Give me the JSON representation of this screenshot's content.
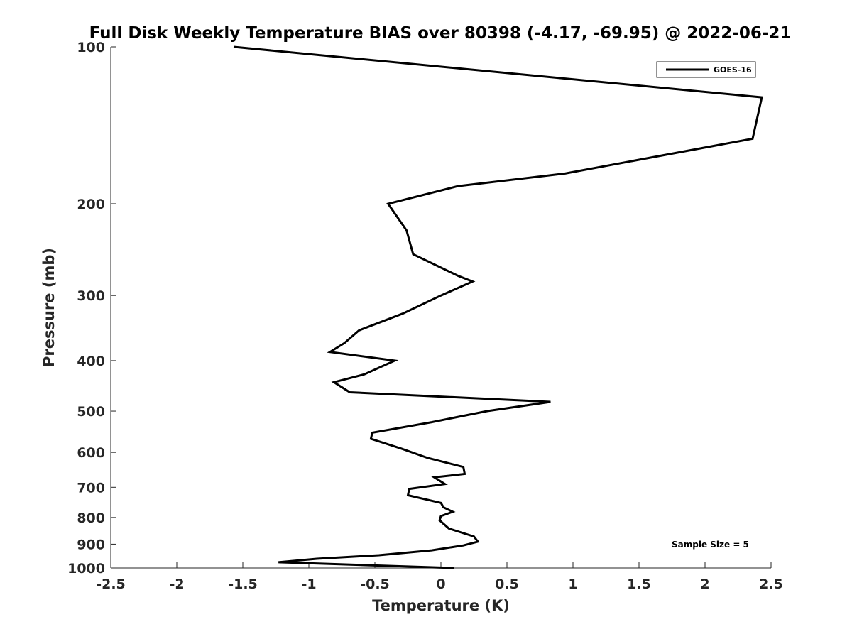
{
  "chart_data": {
    "type": "line",
    "title": "Full Disk Weekly Temperature BIAS over 80398 (-4.17, -69.95) @ 2022-06-21",
    "xlabel": "Temperature (K)",
    "ylabel": "Pressure (mb)",
    "xlim": [
      -2.5,
      2.5
    ],
    "ylim": [
      100,
      1000
    ],
    "yscale": "log",
    "yreversed": true,
    "x_ticks": [
      -2.5,
      -2,
      -1.5,
      -1,
      -0.5,
      0,
      0.5,
      1,
      1.5,
      2,
      2.5
    ],
    "x_tick_labels": [
      "-2.5",
      "-2",
      "-1.5",
      "-1",
      "-0.5",
      "0",
      "0.5",
      "1",
      "1.5",
      "2",
      "2.5"
    ],
    "y_ticks": [
      100,
      200,
      300,
      400,
      500,
      600,
      700,
      800,
      900,
      1000
    ],
    "y_tick_labels": [
      "100",
      "200",
      "300",
      "400",
      "500",
      "600",
      "700",
      "800",
      "900",
      "1000"
    ],
    "legend_position": "top-right",
    "grid": false,
    "annotation": "Sample Size = 5",
    "series": [
      {
        "name": "GOES-16",
        "color": "#000000",
        "points": [
          {
            "x": -1.57,
            "y": 100
          },
          {
            "x": 2.43,
            "y": 125
          },
          {
            "x": 2.36,
            "y": 150
          },
          {
            "x": 0.94,
            "y": 175
          },
          {
            "x": 0.13,
            "y": 185
          },
          {
            "x": -0.4,
            "y": 200
          },
          {
            "x": -0.26,
            "y": 225
          },
          {
            "x": -0.21,
            "y": 250
          },
          {
            "x": 0.13,
            "y": 275
          },
          {
            "x": 0.24,
            "y": 282
          },
          {
            "x": 0.0,
            "y": 300
          },
          {
            "x": -0.29,
            "y": 325
          },
          {
            "x": -0.62,
            "y": 350
          },
          {
            "x": -0.73,
            "y": 370
          },
          {
            "x": -0.84,
            "y": 385
          },
          {
            "x": -0.35,
            "y": 400
          },
          {
            "x": -0.58,
            "y": 425
          },
          {
            "x": -0.81,
            "y": 440
          },
          {
            "x": -0.69,
            "y": 460
          },
          {
            "x": 0.83,
            "y": 480
          },
          {
            "x": 0.35,
            "y": 500
          },
          {
            "x": -0.07,
            "y": 525
          },
          {
            "x": -0.52,
            "y": 550
          },
          {
            "x": -0.53,
            "y": 565
          },
          {
            "x": -0.3,
            "y": 590
          },
          {
            "x": -0.1,
            "y": 615
          },
          {
            "x": 0.17,
            "y": 640
          },
          {
            "x": 0.18,
            "y": 660
          },
          {
            "x": -0.05,
            "y": 670
          },
          {
            "x": 0.03,
            "y": 690
          },
          {
            "x": -0.24,
            "y": 705
          },
          {
            "x": -0.25,
            "y": 725
          },
          {
            "x": 0.0,
            "y": 750
          },
          {
            "x": 0.02,
            "y": 765
          },
          {
            "x": 0.09,
            "y": 780
          },
          {
            "x": 0.0,
            "y": 795
          },
          {
            "x": -0.01,
            "y": 810
          },
          {
            "x": 0.06,
            "y": 840
          },
          {
            "x": 0.25,
            "y": 870
          },
          {
            "x": 0.28,
            "y": 890
          },
          {
            "x": 0.17,
            "y": 905
          },
          {
            "x": -0.07,
            "y": 925
          },
          {
            "x": -0.47,
            "y": 945
          },
          {
            "x": -0.94,
            "y": 960
          },
          {
            "x": -1.23,
            "y": 975
          },
          {
            "x": 0.1,
            "y": 1000
          }
        ]
      }
    ]
  }
}
